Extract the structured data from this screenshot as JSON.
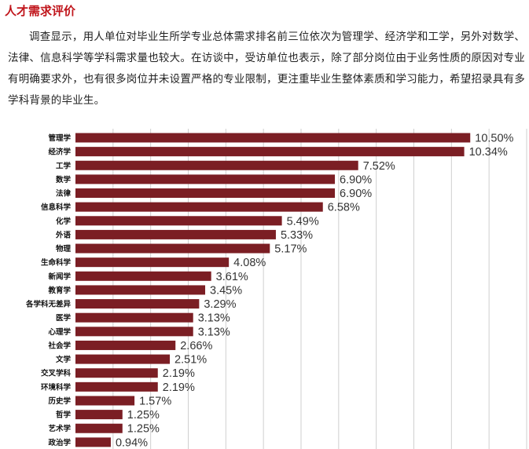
{
  "section": {
    "title": "人才需求评价",
    "paragraph": "调查显示，用人单位对毕业生所学专业总体需求排名前三位依次为管理学、经济学和工学，另外对数学、法律、信息科学等学科需求量也较大。在访谈中，受访单位也表示，除了部分岗位由于业务性质的原因对专业有明确要求外，也有很多岗位并未设置严格的专业限制，更注重毕业生整体素质和学习能力，希望招录具有多学科背景的毕业生。"
  },
  "colors": {
    "title": "#c0151b",
    "bar": "#7b1e24",
    "grid": "#cfcfcf"
  },
  "chart_data": {
    "type": "bar",
    "orientation": "horizontal",
    "categories": [
      "管理学",
      "经济学",
      "工学",
      "数学",
      "法律",
      "信息科学",
      "化学",
      "外语",
      "物理",
      "生命科学",
      "新闻学",
      "教育学",
      "各学科无差异",
      "医学",
      "心理学",
      "社会学",
      "文学",
      "交叉学科",
      "环境科学",
      "历史学",
      "哲学",
      "艺术学",
      "政治学"
    ],
    "values": [
      10.5,
      10.34,
      7.52,
      6.9,
      6.9,
      6.58,
      5.49,
      5.33,
      5.17,
      4.08,
      3.61,
      3.45,
      3.29,
      3.13,
      3.13,
      2.66,
      2.51,
      2.19,
      2.19,
      1.57,
      1.25,
      1.25,
      0.94
    ],
    "value_labels": [
      "10.50%",
      "10.34%",
      "7.52%",
      "6.90%",
      "6.90%",
      "6.58%",
      "5.49%",
      "5.33%",
      "5.17%",
      "4.08%",
      "3.61%",
      "3.45%",
      "3.29%",
      "3.13%",
      "3.13%",
      "2.66%",
      "2.51%",
      "2.19%",
      "2.19%",
      "1.57%",
      "1.25%",
      "1.25%",
      "0.94%"
    ],
    "xlim": [
      0,
      12
    ],
    "grid": true,
    "legend": "none"
  }
}
